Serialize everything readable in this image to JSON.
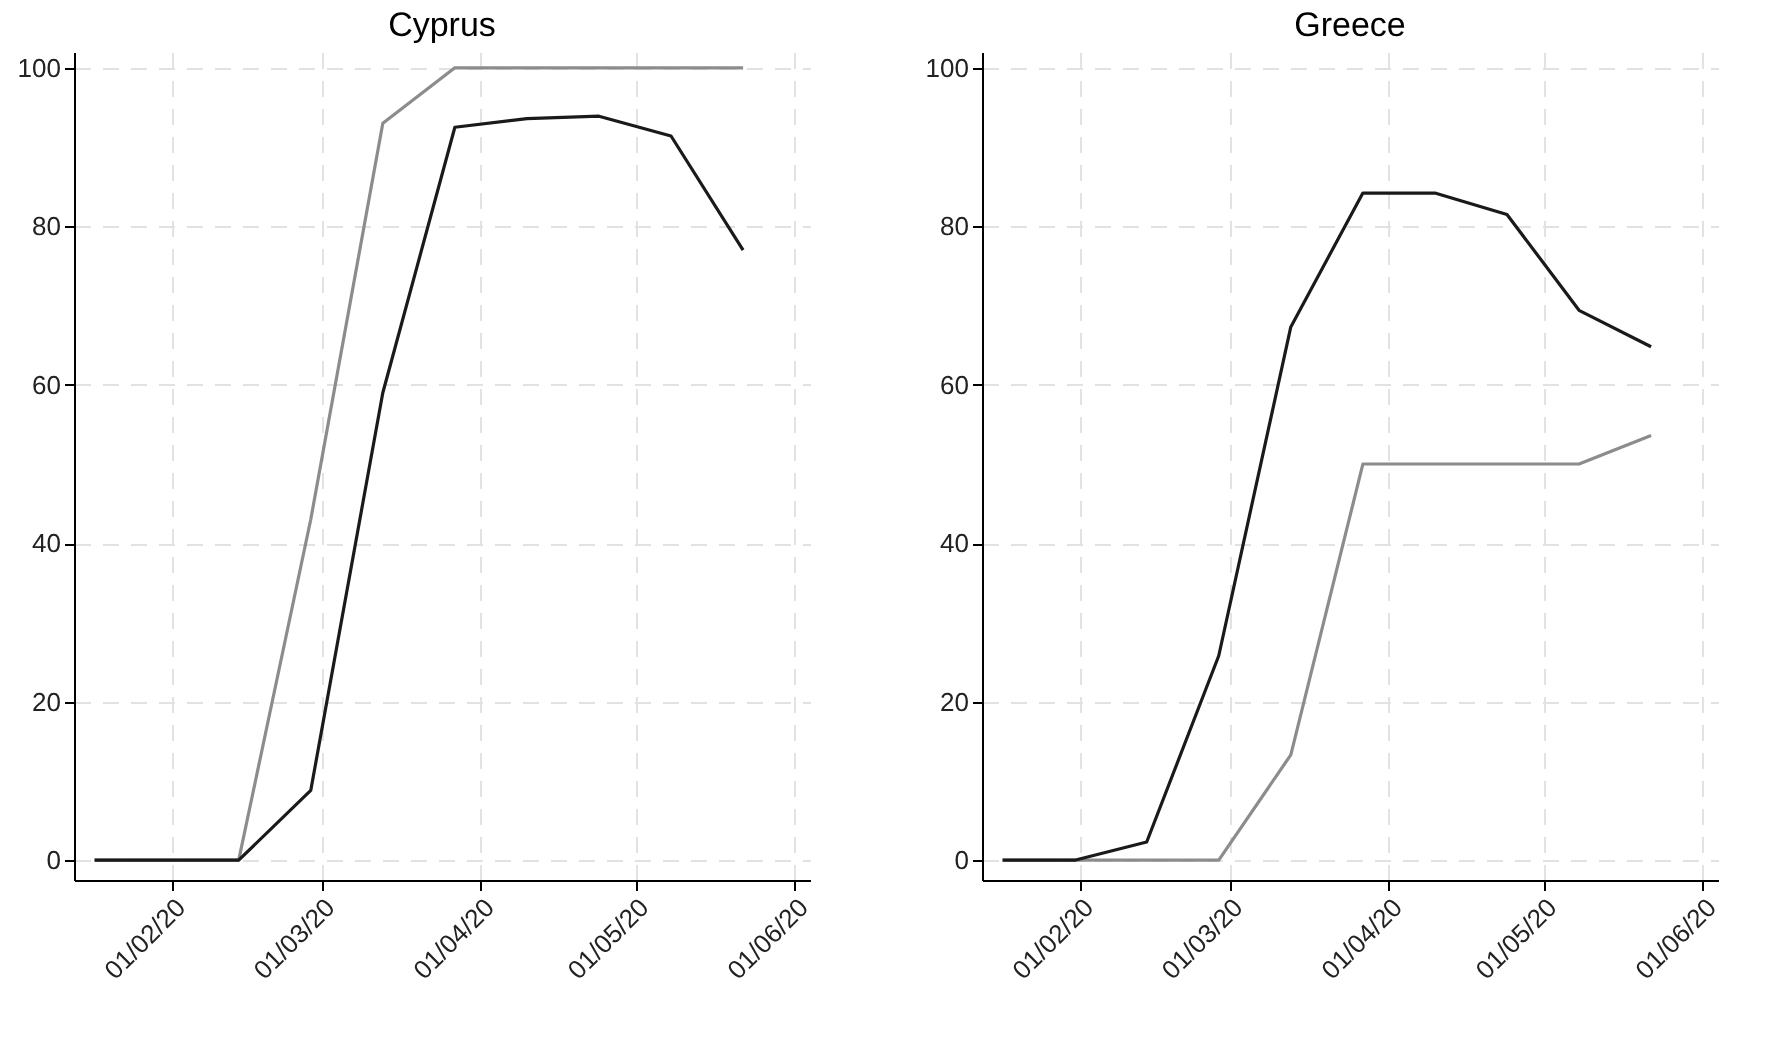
{
  "chart_data": [
    {
      "type": "line",
      "title": "Cyprus",
      "x": [
        "2020-01-17",
        "2020-01-31",
        "2020-02-14",
        "2020-02-28",
        "2020-03-13",
        "2020-03-27",
        "2020-04-10",
        "2020-04-24",
        "2020-05-08",
        "2020-05-22"
      ],
      "series": [
        {
          "color": "#8c8c8c",
          "values": [
            0,
            0,
            0,
            43,
            93,
            100,
            100,
            100,
            100,
            100
          ]
        },
        {
          "color": "#1a1a1a",
          "values": [
            0,
            0,
            0,
            8.8,
            59,
            92.5,
            93.6,
            93.9,
            91.4,
            77
          ]
        }
      ],
      "xlim": [
        "2020-01-13",
        "2020-06-04"
      ],
      "xticks": [
        {
          "value": "2020-02-01",
          "label": "01/02/20"
        },
        {
          "value": "2020-03-01",
          "label": "01/03/20"
        },
        {
          "value": "2020-04-01",
          "label": "01/04/20"
        },
        {
          "value": "2020-05-01",
          "label": "01/05/20"
        },
        {
          "value": "2020-06-01",
          "label": "01/06/20"
        }
      ],
      "ylim": [
        -2.5,
        102
      ],
      "yticks": [
        0,
        20,
        40,
        60,
        80,
        100
      ],
      "grid": true,
      "legend": false
    },
    {
      "type": "line",
      "title": "Greece",
      "x": [
        "2020-01-17",
        "2020-01-31",
        "2020-02-14",
        "2020-02-28",
        "2020-03-13",
        "2020-03-27",
        "2020-04-10",
        "2020-04-24",
        "2020-05-08",
        "2020-05-22"
      ],
      "series": [
        {
          "color": "#8c8c8c",
          "values": [
            0,
            0,
            0,
            0,
            13.3,
            50,
            50,
            50,
            50,
            53.6
          ]
        },
        {
          "color": "#1a1a1a",
          "values": [
            0,
            0,
            2.3,
            25.8,
            67.3,
            84.2,
            84.2,
            81.5,
            69.4,
            64.8
          ]
        }
      ],
      "xlim": [
        "2020-01-13",
        "2020-06-04"
      ],
      "xticks": [
        {
          "value": "2020-02-01",
          "label": "01/02/20"
        },
        {
          "value": "2020-03-01",
          "label": "01/03/20"
        },
        {
          "value": "2020-04-01",
          "label": "01/04/20"
        },
        {
          "value": "2020-05-01",
          "label": "01/05/20"
        },
        {
          "value": "2020-06-01",
          "label": "01/06/20"
        }
      ],
      "ylim": [
        -2.5,
        102
      ],
      "yticks": [
        0,
        20,
        40,
        60,
        80,
        100
      ],
      "grid": true,
      "legend": false
    }
  ]
}
